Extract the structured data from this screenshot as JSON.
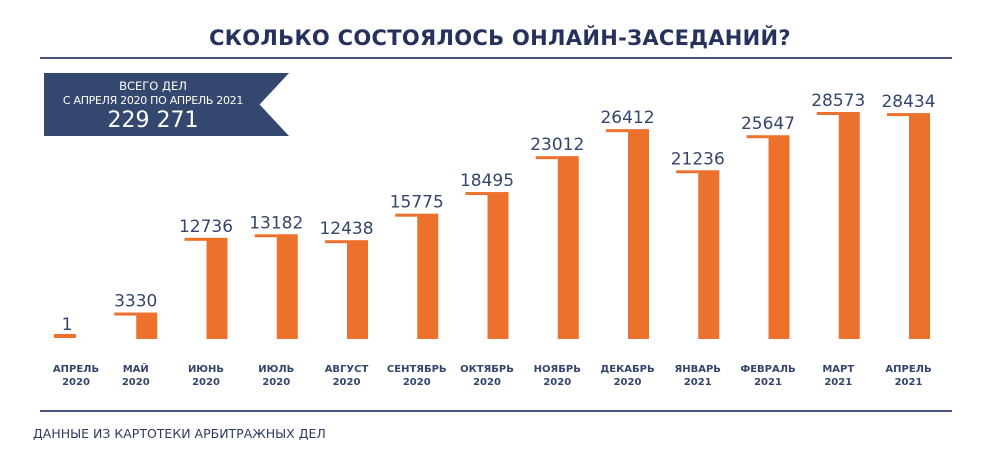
{
  "title": "СКОЛЬКО СОСТОЯЛОСЬ ОНЛАЙН-ЗАСЕДАНИЙ?",
  "banner": {
    "line1": "ВСЕГО ДЕЛ",
    "line2": "С АПРЕЛЯ 2020 ПО АПРЕЛЬ 2021",
    "total": "229 271"
  },
  "footer": "ДАННЫЕ ИЗ КАРТОТЕКИ АРБИТРАЖНЫХ ДЕЛ",
  "colors": {
    "bar": "#ec712c",
    "text": "#2e3a62",
    "banner": "#34476e"
  },
  "chart_data": {
    "type": "bar",
    "title": "СКОЛЬКО СОСТОЯЛОСЬ ОНЛАЙН-ЗАСЕДАНИЙ?",
    "categories": [
      [
        "АПРЕЛЬ",
        "2020"
      ],
      [
        "МАЙ",
        "2020"
      ],
      [
        "ИЮНЬ",
        "2020"
      ],
      [
        "ИЮЛЬ",
        "2020"
      ],
      [
        "АВГУСТ",
        "2020"
      ],
      [
        "СЕНТЯБРЬ",
        "2020"
      ],
      [
        "ОКТЯБРЬ",
        "2020"
      ],
      [
        "НОЯБРЬ",
        "2020"
      ],
      [
        "ДЕКАБРЬ",
        "2020"
      ],
      [
        "ЯНВАРЬ",
        "2021"
      ],
      [
        "ФЕВРАЛЬ",
        "2021"
      ],
      [
        "МАРТ",
        "2021"
      ],
      [
        "АПРЕЛЬ",
        "2021"
      ]
    ],
    "values": [
      1,
      3330,
      12736,
      13182,
      12438,
      15775,
      18495,
      23012,
      26412,
      21236,
      25647,
      28573,
      28434
    ],
    "xlabel": "",
    "ylabel": "",
    "grid": false,
    "data_labels": true
  }
}
